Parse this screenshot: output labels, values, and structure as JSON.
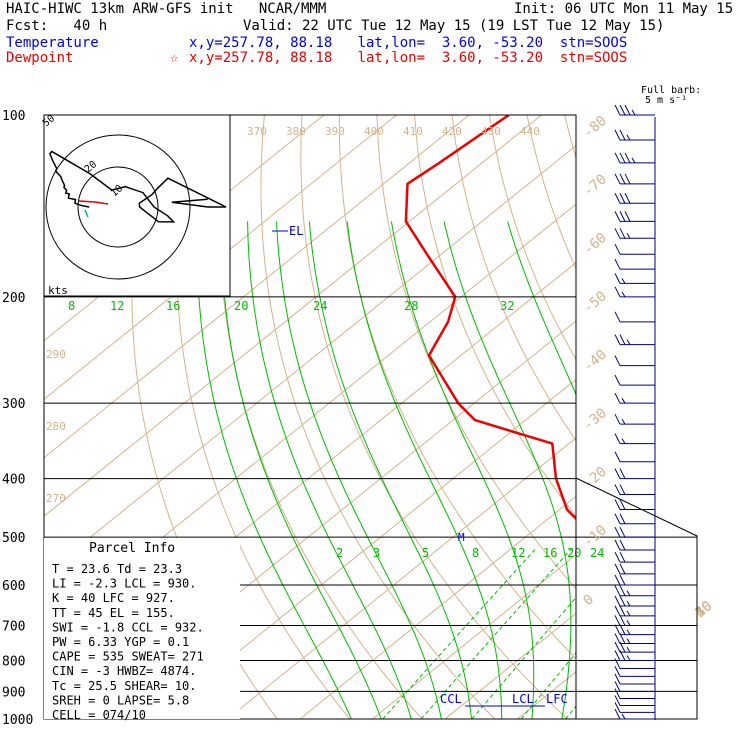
{
  "header": {
    "title": "HAIC-HIWC 13km ARW-GFS init   NCAR/MMM",
    "init": "Init: 06 UTC Mon 11 May 15",
    "fcst": "Fcst:   40 h",
    "valid": "Valid: 22 UTC Tue 12 May 15 (19 LST Tue 12 May 15)",
    "temp_label": "Temperature",
    "temp_info": "x,y=257.78, 88.18   lat,lon=  3.60, -53.20  stn=SOOS",
    "dew_label": "Dewpoint",
    "dew_marker": "☆",
    "dew_info": "x,y=257.78, 88.18   lat,lon=  3.60, -53.20  stn=SOOS",
    "barb_title1": "Full barb:",
    "barb_title2": "5 m s⁻¹"
  },
  "colors": {
    "temperature": "#0000ee",
    "dewpoint": "#ee0000",
    "isotherm": "#d2b48c",
    "mixing_ratio": "#00bb00",
    "barbs": "#000080"
  },
  "chart_data": {
    "type": "line",
    "subtype": "skew-T log-p sounding",
    "pressure_labels": [
      "100",
      "200",
      "300",
      "400",
      "500",
      "600",
      "700",
      "800",
      "900",
      "1000"
    ],
    "isotherm_labels": [
      "-80",
      "-70",
      "-60",
      "-50",
      "-40",
      "-30",
      "-20",
      "-10",
      "0",
      "10",
      "20",
      "30",
      "40"
    ],
    "theta_labels_top": [
      "370",
      "380",
      "390",
      "400",
      "410",
      "420",
      "430",
      "440"
    ],
    "theta_labels_left": [
      "290",
      "280",
      "270"
    ],
    "wet_bulb_labels": [
      "8",
      "12",
      "16",
      "20",
      "24",
      "28",
      "32"
    ],
    "mixing_ratio_labels": [
      "2",
      "3",
      "5",
      "8",
      "12",
      "16",
      "20",
      "24"
    ],
    "series": [
      {
        "name": "Temperature",
        "p": [
          1000,
          950,
          900,
          850,
          800,
          700,
          600,
          520,
          500,
          450,
          400,
          350,
          300,
          250,
          200,
          150,
          120,
          100
        ],
        "t": [
          25.5,
          22.2,
          20,
          18,
          15.3,
          9.4,
          3.6,
          -3.8,
          -5.2,
          -8.9,
          -13,
          -19.2,
          -26.5,
          -36,
          -47.4,
          -62.3,
          -73.9,
          -82.2
        ]
      },
      {
        "name": "Dewpoint",
        "p": [
          1000,
          950,
          900,
          850,
          800,
          700,
          600,
          520,
          500,
          450,
          400,
          350,
          320,
          300,
          250,
          220,
          200,
          170,
          150,
          130,
          120,
          100
        ],
        "t": [
          23.3,
          20.2,
          18.5,
          16.6,
          14,
          8.3,
          2.2,
          -7.2,
          -10.5,
          -19,
          -25.8,
          -32.3,
          -47,
          -52.2,
          -64.4,
          -67.5,
          -70.8,
          -82,
          -90.5,
          -96.7,
          -95.9,
          -94.5
        ]
      }
    ],
    "parcel_p": [
      950,
      900,
      850,
      800,
      700,
      600,
      520,
      500
    ],
    "parcel_t": [
      23.0,
      20.4,
      18.1,
      15.5,
      9.6,
      3.0,
      -3.6,
      -5.0
    ],
    "level_labels": {
      "ccl": "CCL",
      "lcl": "LCL",
      "lfc": "LFC",
      "el": "EL",
      "m": "M"
    },
    "hodograph": {
      "ring_labels": [
        "20",
        "10"
      ],
      "units": "kts",
      "corner": "50"
    },
    "winds": {
      "p": [
        1000,
        975,
        950,
        925,
        900,
        875,
        850,
        825,
        800,
        775,
        750,
        725,
        700,
        675,
        650,
        625,
        600,
        575,
        550,
        525,
        500,
        475,
        450,
        425,
        400,
        375,
        350,
        325,
        300,
        280,
        260,
        240,
        220,
        200,
        190,
        180,
        170,
        160,
        150,
        140,
        130,
        120,
        110,
        100
      ],
      "dir": [
        90,
        92,
        95,
        98,
        100,
        100,
        102,
        105,
        105,
        108,
        110,
        110,
        112,
        115,
        115,
        118,
        120,
        120,
        122,
        125,
        125,
        128,
        130,
        130,
        132,
        140,
        160,
        200,
        240,
        270,
        280,
        285,
        290,
        270,
        260,
        250,
        245,
        240,
        270,
        270,
        270,
        270,
        265,
        265
      ],
      "kts": [
        8,
        10,
        12,
        12,
        12,
        14,
        14,
        14,
        15,
        15,
        16,
        16,
        16,
        17,
        17,
        18,
        20,
        20,
        20,
        22,
        22,
        24,
        24,
        24,
        20,
        12,
        5,
        6,
        8,
        10,
        14,
        16,
        12,
        6,
        6,
        10,
        12,
        16,
        30,
        30,
        30,
        25,
        15,
        25
      ]
    }
  },
  "parcel_info": {
    "title": "Parcel Info",
    "rows": [
      "T    =   23.6  Td  =  23.3",
      "LI   =   -2.3  LCL =  930.",
      "K    =     40  LFC =  927.",
      "TT   =     45  EL  =  155.",
      "SWI  =   -1.8  CCL =  932.",
      "PW   =   6.33  YGP =   0.1",
      "CAPE =    535  SWEAT=  271",
      "CIN  =     -3  HWBZ= 4874.",
      "Tc   =   25.5  SHEAR=  10.",
      "SREH =      0  LAPSE=  5.8",
      "CELL = 074/10"
    ]
  }
}
